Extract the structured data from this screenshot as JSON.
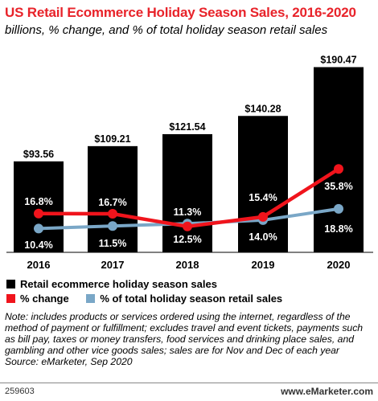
{
  "title": "US Retail Ecommerce Holiday Season Sales, 2016-2020",
  "subtitle": "billions, % change, and % of total holiday season retail sales",
  "colors": {
    "title": "#e8232a",
    "bars": "#000000",
    "change_line": "#f0141c",
    "share_line": "#7aa7c7"
  },
  "legend": {
    "bars": "Retail ecommerce holiday season sales",
    "change": "% change",
    "share": "% of total holiday season retail sales"
  },
  "note": "Note: includes products or services ordered using the internet, regardless of the method of payment or fulfillment; excludes travel and event tickets, payments such as bill pay, taxes or money transfers, food services and drinking place sales, and gambling and other vice goods sales; sales are for Nov and Dec of each year",
  "source": "Source: eMarketer, Sep 2020",
  "chart_id": "259603",
  "brand": "www.eMarketer.com",
  "chart_data": {
    "type": "bar",
    "categories": [
      "2016",
      "2017",
      "2018",
      "2019",
      "2020"
    ],
    "bar_values": [
      93.56,
      109.21,
      121.54,
      140.28,
      190.47
    ],
    "bar_labels": [
      "$93.56",
      "$109.21",
      "$121.54",
      "$140.28",
      "$190.47"
    ],
    "series": [
      {
        "name": "% change",
        "type": "line",
        "values": [
          16.8,
          16.7,
          11.3,
          15.4,
          35.8
        ],
        "labels": [
          "16.8%",
          "16.7%",
          "11.3%",
          "15.4%",
          "35.8%"
        ]
      },
      {
        "name": "% of total holiday season retail sales",
        "type": "line",
        "values": [
          10.4,
          11.5,
          12.5,
          14.0,
          18.8
        ],
        "labels": [
          "10.4%",
          "11.5%",
          "12.5%",
          "14.0%",
          "18.8%"
        ]
      }
    ],
    "ylim_bars": [
      0,
      200
    ],
    "grid": false,
    "legend_position": "bottom"
  }
}
